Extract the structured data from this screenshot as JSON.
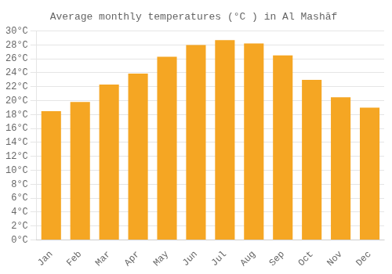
{
  "chart_data": {
    "type": "bar",
    "title": "Average monthly temperatures (°C ) in Al Mashāf",
    "categories": [
      "Jan",
      "Feb",
      "Mar",
      "Apr",
      "May",
      "Jun",
      "Jul",
      "Aug",
      "Sep",
      "Oct",
      "Nov",
      "Dec"
    ],
    "values": [
      18.5,
      19.8,
      22.3,
      23.9,
      26.3,
      28.0,
      28.7,
      28.2,
      26.5,
      23.0,
      20.5,
      19.0
    ],
    "color": "#F5A623",
    "ylim": [
      0,
      30
    ],
    "yticks": [
      {
        "value": 0,
        "label": "0°C"
      },
      {
        "value": 2,
        "label": "2°C"
      },
      {
        "value": 4,
        "label": "4°C"
      },
      {
        "value": 6,
        "label": "6°C"
      },
      {
        "value": 8,
        "label": "8°C"
      },
      {
        "value": 10,
        "label": "10°C"
      },
      {
        "value": 12,
        "label": "12°C"
      },
      {
        "value": 14,
        "label": "14°C"
      },
      {
        "value": 16,
        "label": "16°C"
      },
      {
        "value": 18,
        "label": "18°C"
      },
      {
        "value": 20,
        "label": "20°C"
      },
      {
        "value": 22,
        "label": "22°C"
      },
      {
        "value": 24,
        "label": "24°C"
      },
      {
        "value": 26,
        "label": "26°C"
      },
      {
        "value": 28,
        "label": "28°C"
      },
      {
        "value": 30,
        "label": "30°C"
      }
    ],
    "grid": true
  }
}
